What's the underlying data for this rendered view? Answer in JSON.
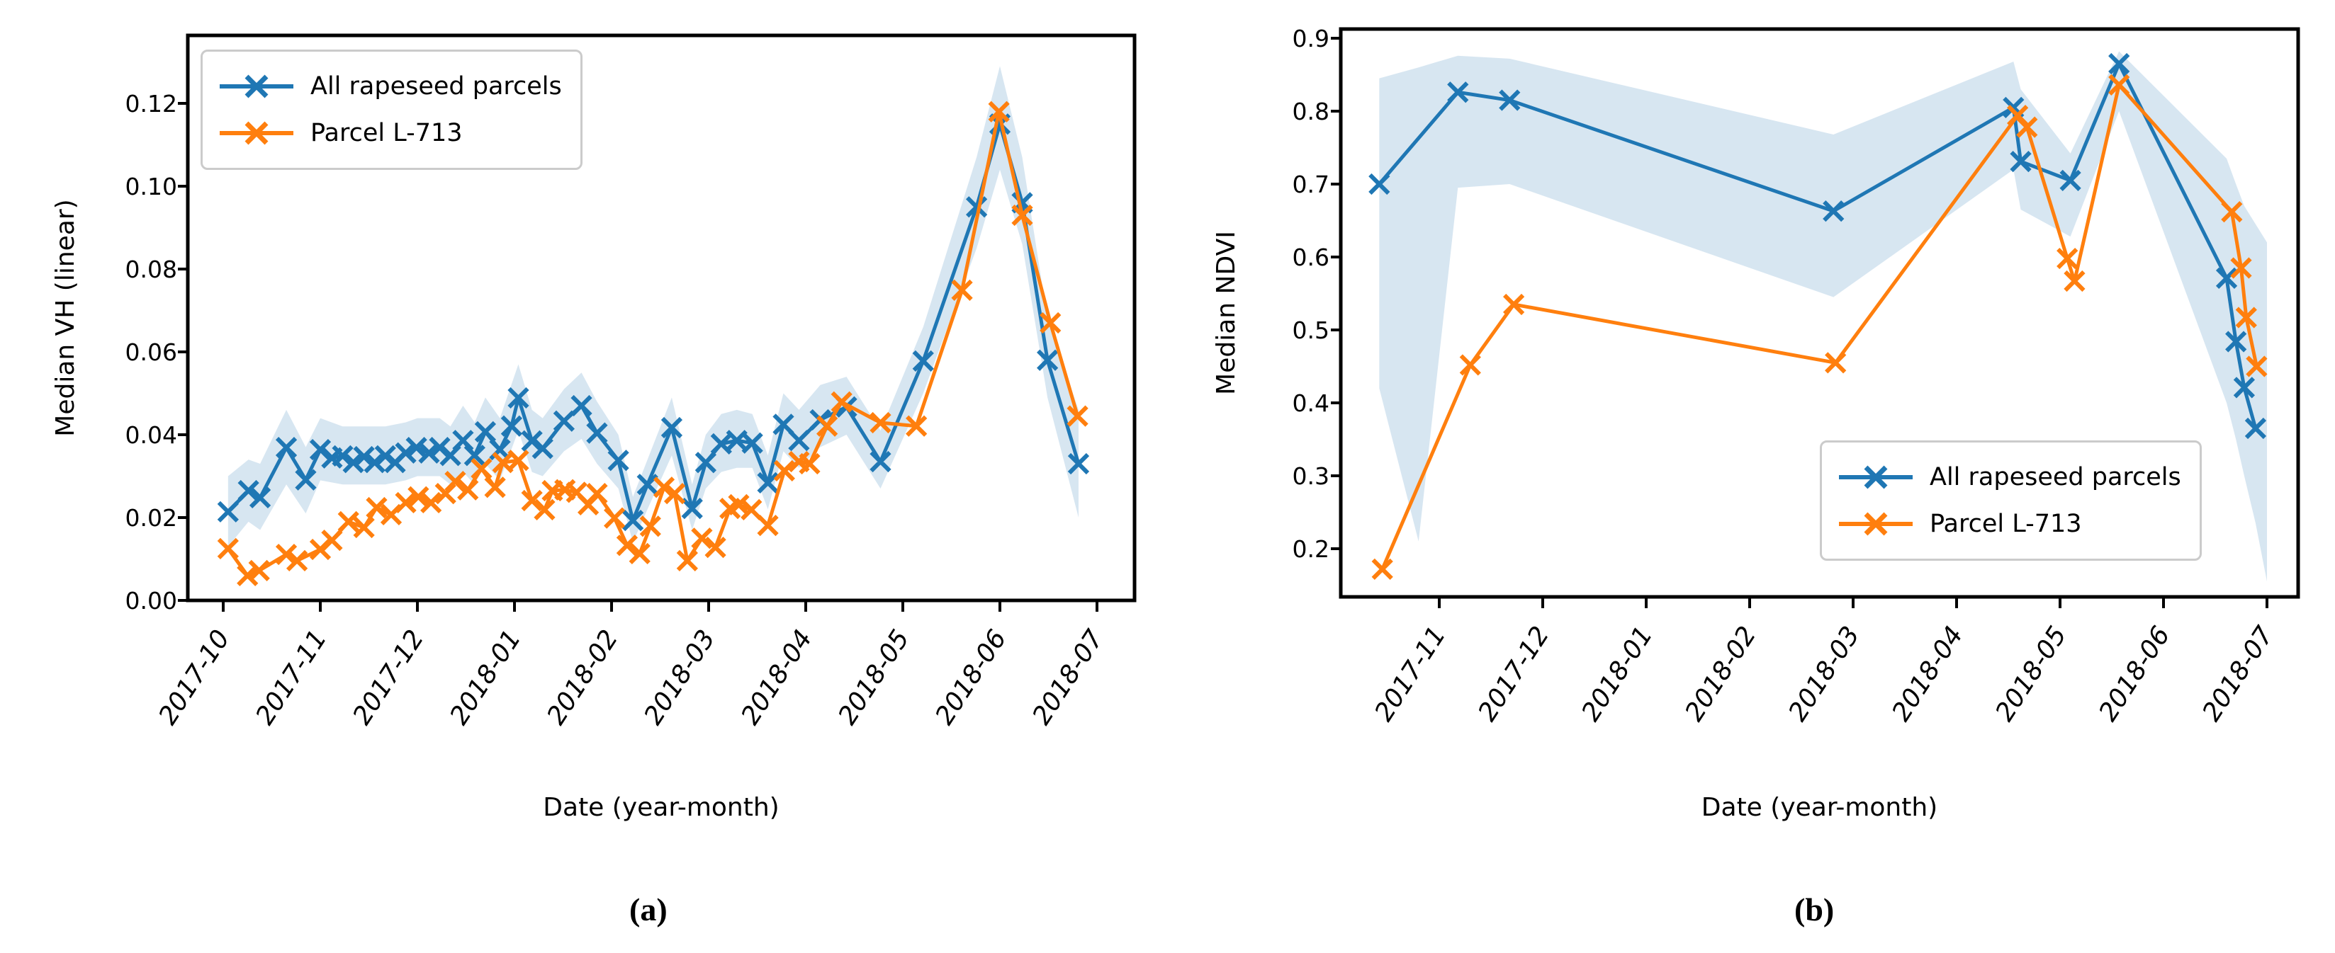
{
  "figure": {
    "sublabel_a": "(a)",
    "sublabel_b": "(b)",
    "colors": {
      "blue": "#1f77b4",
      "orange": "#ff7f0e",
      "band": "#1f77b4",
      "band_opacity": 0.18
    }
  },
  "chart_data": [
    {
      "id": "a",
      "type": "line",
      "xlabel": "Date (year-month)",
      "ylabel": "Median VH (linear)",
      "x_unit": "months since 2017-10-01",
      "xlim": [
        -0.37,
        9.39
      ],
      "ylim": [
        0.0,
        0.1364
      ],
      "grid": false,
      "xtick_t": [
        0,
        1,
        2,
        3,
        4,
        5,
        6,
        7,
        8,
        9
      ],
      "xtick_labels": [
        "2017-10",
        "2017-11",
        "2017-12",
        "2018-01",
        "2018-02",
        "2018-03",
        "2018-04",
        "2018-05",
        "2018-06",
        "2018-07"
      ],
      "ytick_values": [
        0.0,
        0.02,
        0.04,
        0.06,
        0.08,
        0.1,
        0.12
      ],
      "ytick_decimals": 2,
      "legend": {
        "location": "upper-left",
        "entries": [
          {
            "label": "All rapeseed parcels",
            "color": "#1f77b4",
            "marker": "x"
          },
          {
            "label": "Parcel L-713",
            "color": "#ff7f0e",
            "marker": "x"
          }
        ]
      },
      "band": {
        "series_ref": "All rapeseed parcels",
        "points": [
          [
            0.05,
            0.013,
            0.03
          ],
          [
            0.26,
            0.019,
            0.034
          ],
          [
            0.38,
            0.017,
            0.033
          ],
          [
            0.65,
            0.028,
            0.046
          ],
          [
            0.85,
            0.021,
            0.037
          ],
          [
            1.0,
            0.029,
            0.044
          ],
          [
            1.23,
            0.028,
            0.042
          ],
          [
            1.45,
            0.028,
            0.042
          ],
          [
            1.67,
            0.028,
            0.042
          ],
          [
            1.88,
            0.029,
            0.043
          ],
          [
            2.0,
            0.03,
            0.044
          ],
          [
            2.23,
            0.03,
            0.044
          ],
          [
            2.34,
            0.028,
            0.042
          ],
          [
            2.47,
            0.031,
            0.047
          ],
          [
            2.59,
            0.028,
            0.043
          ],
          [
            2.7,
            0.033,
            0.049
          ],
          [
            2.85,
            0.029,
            0.044
          ],
          [
            3.04,
            0.041,
            0.057
          ],
          [
            3.18,
            0.031,
            0.046
          ],
          [
            3.29,
            0.03,
            0.044
          ],
          [
            3.51,
            0.036,
            0.051
          ],
          [
            3.69,
            0.039,
            0.055
          ],
          [
            3.85,
            0.033,
            0.048
          ],
          [
            4.07,
            0.027,
            0.04
          ],
          [
            4.22,
            0.014,
            0.025
          ],
          [
            4.37,
            0.022,
            0.034
          ],
          [
            4.62,
            0.035,
            0.049
          ],
          [
            4.83,
            0.017,
            0.028
          ],
          [
            4.97,
            0.027,
            0.04
          ],
          [
            5.13,
            0.031,
            0.045
          ],
          [
            5.29,
            0.032,
            0.046
          ],
          [
            5.45,
            0.032,
            0.045
          ],
          [
            5.61,
            0.022,
            0.035
          ],
          [
            5.77,
            0.036,
            0.05
          ],
          [
            5.93,
            0.032,
            0.046
          ],
          [
            6.15,
            0.037,
            0.052
          ],
          [
            6.42,
            0.04,
            0.054
          ],
          [
            6.77,
            0.027,
            0.041
          ],
          [
            7.21,
            0.05,
            0.066
          ],
          [
            7.76,
            0.085,
            0.107
          ],
          [
            8.0,
            0.104,
            0.129
          ],
          [
            8.23,
            0.086,
            0.107
          ],
          [
            8.49,
            0.049,
            0.068
          ],
          [
            8.81,
            0.02,
            0.046
          ]
        ]
      },
      "series": [
        {
          "name": "All rapeseed parcels",
          "color": "#1f77b4",
          "marker": "x",
          "points": [
            [
              0.05,
              0.0214
            ],
            [
              0.26,
              0.0265
            ],
            [
              0.38,
              0.0248
            ],
            [
              0.65,
              0.0369
            ],
            [
              0.85,
              0.0291
            ],
            [
              1.0,
              0.0364
            ],
            [
              1.12,
              0.0344
            ],
            [
              1.23,
              0.0349
            ],
            [
              1.34,
              0.0333
            ],
            [
              1.45,
              0.0347
            ],
            [
              1.56,
              0.0333
            ],
            [
              1.67,
              0.0349
            ],
            [
              1.77,
              0.0333
            ],
            [
              1.88,
              0.0356
            ],
            [
              1.99,
              0.0369
            ],
            [
              2.12,
              0.0356
            ],
            [
              2.23,
              0.0369
            ],
            [
              2.34,
              0.035
            ],
            [
              2.47,
              0.0386
            ],
            [
              2.59,
              0.035
            ],
            [
              2.7,
              0.0407
            ],
            [
              2.85,
              0.0364
            ],
            [
              2.97,
              0.0421
            ],
            [
              3.04,
              0.0489
            ],
            [
              3.18,
              0.0385
            ],
            [
              3.29,
              0.0367
            ],
            [
              3.51,
              0.0433
            ],
            [
              3.69,
              0.047
            ],
            [
              3.85,
              0.0404
            ],
            [
              4.07,
              0.0338
            ],
            [
              4.22,
              0.0193
            ],
            [
              4.37,
              0.028
            ],
            [
              4.62,
              0.0417
            ],
            [
              4.83,
              0.0222
            ],
            [
              4.97,
              0.0333
            ],
            [
              5.13,
              0.0378
            ],
            [
              5.29,
              0.0386
            ],
            [
              5.45,
              0.038
            ],
            [
              5.61,
              0.0284
            ],
            [
              5.77,
              0.0425
            ],
            [
              5.93,
              0.0386
            ],
            [
              6.15,
              0.0436
            ],
            [
              6.42,
              0.0467
            ],
            [
              6.77,
              0.0335
            ],
            [
              7.21,
              0.0578
            ],
            [
              7.76,
              0.095
            ],
            [
              8.0,
              0.115
            ],
            [
              8.23,
              0.096
            ],
            [
              8.49,
              0.058
            ],
            [
              8.81,
              0.033
            ]
          ]
        },
        {
          "name": "Parcel L-713",
          "color": "#ff7f0e",
          "marker": "x",
          "points": [
            [
              0.05,
              0.0125
            ],
            [
              0.25,
              0.006
            ],
            [
              0.37,
              0.0072
            ],
            [
              0.65,
              0.0111
            ],
            [
              0.76,
              0.0096
            ],
            [
              1.0,
              0.0123
            ],
            [
              1.12,
              0.0145
            ],
            [
              1.29,
              0.019
            ],
            [
              1.45,
              0.0176
            ],
            [
              1.58,
              0.0224
            ],
            [
              1.73,
              0.0207
            ],
            [
              1.88,
              0.0236
            ],
            [
              2.01,
              0.025
            ],
            [
              2.14,
              0.0236
            ],
            [
              2.29,
              0.0258
            ],
            [
              2.39,
              0.0287
            ],
            [
              2.52,
              0.0267
            ],
            [
              2.66,
              0.0318
            ],
            [
              2.8,
              0.0273
            ],
            [
              2.88,
              0.0333
            ],
            [
              3.04,
              0.0338
            ],
            [
              3.18,
              0.0241
            ],
            [
              3.31,
              0.0219
            ],
            [
              3.39,
              0.0265
            ],
            [
              3.52,
              0.0267
            ],
            [
              3.64,
              0.0261
            ],
            [
              3.76,
              0.0231
            ],
            [
              3.85,
              0.0258
            ],
            [
              4.03,
              0.0199
            ],
            [
              4.16,
              0.0133
            ],
            [
              4.29,
              0.0113
            ],
            [
              4.4,
              0.0179
            ],
            [
              4.54,
              0.0273
            ],
            [
              4.65,
              0.0258
            ],
            [
              4.78,
              0.0096
            ],
            [
              4.93,
              0.015
            ],
            [
              5.07,
              0.0128
            ],
            [
              5.22,
              0.0222
            ],
            [
              5.31,
              0.0231
            ],
            [
              5.44,
              0.0219
            ],
            [
              5.61,
              0.0181
            ],
            [
              5.78,
              0.0313
            ],
            [
              5.93,
              0.0335
            ],
            [
              6.04,
              0.033
            ],
            [
              6.22,
              0.0421
            ],
            [
              6.37,
              0.0479
            ],
            [
              6.77,
              0.0429
            ],
            [
              7.14,
              0.0421
            ],
            [
              7.61,
              0.0749
            ],
            [
              7.99,
              0.118
            ],
            [
              8.23,
              0.093
            ],
            [
              8.52,
              0.067
            ],
            [
              8.8,
              0.0445
            ]
          ]
        }
      ]
    },
    {
      "id": "b",
      "type": "line",
      "xlabel": "Date (year-month)",
      "ylabel": "Median NDVI",
      "x_unit": "months since 2017-10-01",
      "xlim": [
        0.05,
        9.3
      ],
      "ylim": [
        0.134,
        0.913
      ],
      "grid": false,
      "xtick_t": [
        1,
        2,
        3,
        4,
        5,
        6,
        7,
        8,
        9
      ],
      "xtick_labels": [
        "2017-11",
        "2017-12",
        "2018-01",
        "2018-02",
        "2018-03",
        "2018-04",
        "2018-05",
        "2018-06",
        "2018-07"
      ],
      "ytick_values": [
        0.2,
        0.3,
        0.4,
        0.5,
        0.6,
        0.7,
        0.8,
        0.9
      ],
      "ytick_decimals": 1,
      "legend": {
        "location": "lower-right",
        "entries": [
          {
            "label": "All rapeseed parcels",
            "color": "#1f77b4",
            "marker": "x"
          },
          {
            "label": "Parcel L-713",
            "color": "#ff7f0e",
            "marker": "x"
          }
        ]
      },
      "band": {
        "series_ref": "All rapeseed parcels",
        "points": [
          [
            0.42,
            0.42,
            0.845
          ],
          [
            0.8,
            0.21,
            0.86
          ],
          [
            1.18,
            0.695,
            0.876
          ],
          [
            1.68,
            0.7,
            0.872
          ],
          [
            4.81,
            0.545,
            0.768
          ],
          [
            6.55,
            0.72,
            0.868
          ],
          [
            6.62,
            0.665,
            0.83
          ],
          [
            7.1,
            0.628,
            0.742
          ],
          [
            7.57,
            0.8,
            0.882
          ],
          [
            8.61,
            0.4,
            0.735
          ],
          [
            8.7,
            0.35,
            0.7
          ],
          [
            8.78,
            0.3,
            0.67
          ],
          [
            8.89,
            0.235,
            0.645
          ],
          [
            9.0,
            0.155,
            0.62
          ]
        ]
      },
      "series": [
        {
          "name": "All rapeseed parcels",
          "color": "#1f77b4",
          "marker": "x",
          "points": [
            [
              0.42,
              0.7
            ],
            [
              1.18,
              0.826
            ],
            [
              1.68,
              0.815
            ],
            [
              4.81,
              0.663
            ],
            [
              6.55,
              0.805
            ],
            [
              6.62,
              0.731
            ],
            [
              7.1,
              0.705
            ],
            [
              7.57,
              0.865
            ],
            [
              8.61,
              0.571
            ],
            [
              8.7,
              0.484
            ],
            [
              8.78,
              0.421
            ],
            [
              8.89,
              0.365
            ]
          ]
        },
        {
          "name": "Parcel L-713",
          "color": "#ff7f0e",
          "marker": "x",
          "points": [
            [
              0.45,
              0.172
            ],
            [
              1.3,
              0.452
            ],
            [
              1.72,
              0.535
            ],
            [
              4.83,
              0.455
            ],
            [
              6.59,
              0.794
            ],
            [
              6.68,
              0.778
            ],
            [
              7.07,
              0.598
            ],
            [
              7.14,
              0.567
            ],
            [
              7.57,
              0.836
            ],
            [
              8.66,
              0.662
            ],
            [
              8.75,
              0.585
            ],
            [
              8.8,
              0.517
            ],
            [
              8.9,
              0.45
            ]
          ]
        }
      ]
    }
  ]
}
